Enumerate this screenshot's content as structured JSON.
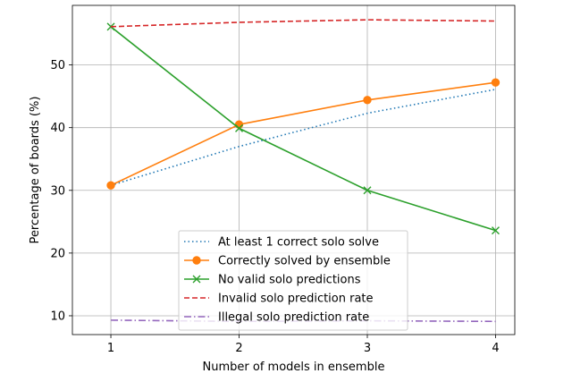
{
  "chart_data": {
    "type": "line",
    "xlabel": "Number of models in ensemble",
    "ylabel": "Percentage of boards (%)",
    "x": [
      1,
      2,
      3,
      4
    ],
    "xlim": [
      0.7,
      4.15
    ],
    "ylim": [
      7,
      59.5
    ],
    "xticks": [
      1,
      2,
      3,
      4
    ],
    "yticks": [
      10,
      20,
      30,
      40,
      50
    ],
    "grid": true,
    "legend_position": "lower center",
    "series": [
      {
        "name": "At least 1 correct solo solve",
        "values": [
          30.8,
          37.0,
          42.3,
          46.1
        ],
        "color": "#1f77b4",
        "linestyle": "dotted",
        "marker": "none"
      },
      {
        "name": "Correctly solved by ensemble",
        "values": [
          30.8,
          40.5,
          44.4,
          47.2
        ],
        "color": "#ff7f0e",
        "linestyle": "solid",
        "marker": "circle"
      },
      {
        "name": "No valid solo predictions",
        "values": [
          56.1,
          39.9,
          30.0,
          23.6
        ],
        "color": "#2ca02c",
        "linestyle": "solid",
        "marker": "x"
      },
      {
        "name": "Invalid solo prediction rate",
        "values": [
          56.1,
          56.8,
          57.2,
          57.0
        ],
        "color": "#d62728",
        "linestyle": "dashed",
        "marker": "none"
      },
      {
        "name": "Illegal solo prediction rate",
        "values": [
          9.3,
          9.1,
          9.2,
          9.1
        ],
        "color": "#9467bd",
        "linestyle": "dashdot",
        "marker": "none"
      }
    ]
  }
}
